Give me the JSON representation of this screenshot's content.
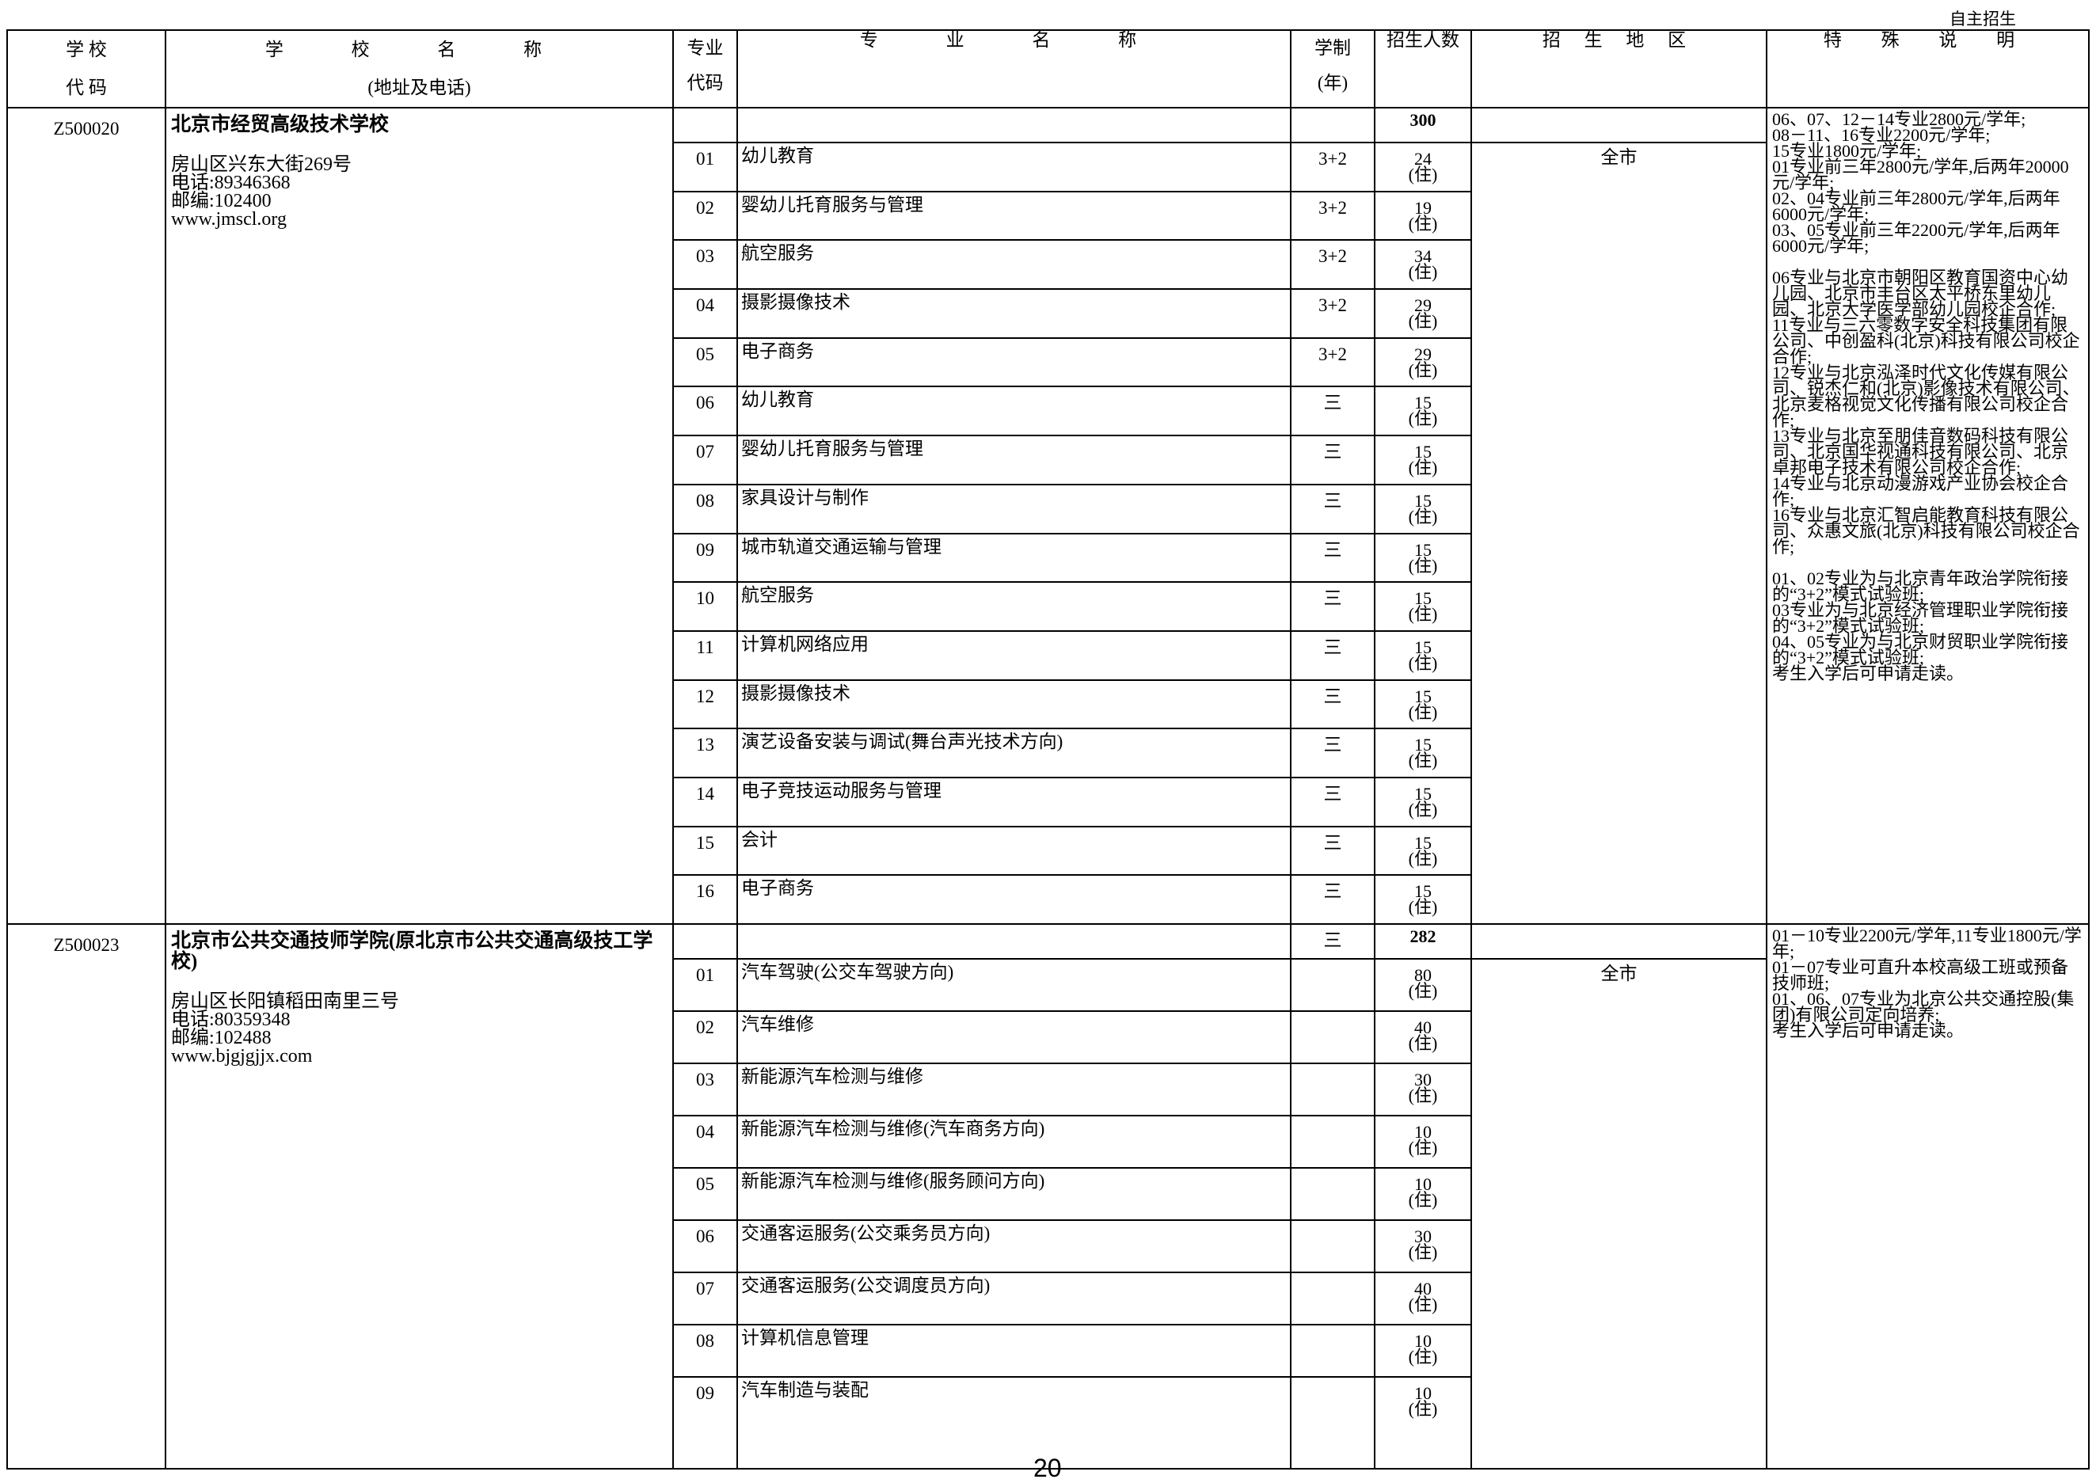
{
  "top_tag": "自主招生",
  "header": {
    "school_code": [
      "学 校",
      "代 码"
    ],
    "school_name": [
      "学 校 名 称",
      "(地址及电话)"
    ],
    "major_code": [
      "专业",
      "代码"
    ],
    "major_name": "专 业 名 称",
    "duration": [
      "学制",
      "(年)"
    ],
    "enrollment": "招生人数",
    "region": "招 生 地 区",
    "remarks": "特 殊 说 明"
  },
  "schools": [
    {
      "code": "Z500020",
      "name": "北京市经贸高级技术学校",
      "address": "房山区兴东大街269号",
      "phone": "电话:89346368",
      "postcode": "邮编:102400",
      "website": "www.jmscl.org",
      "total_duration": "",
      "total": "300",
      "region": "全市",
      "remarks": "06、07、12－14专业2800元/学年;\n08－11、16专业2200元/学年;\n15专业1800元/学年;\n01专业前三年2800元/学年,后两年20000元/学年;\n02、04专业前三年2800元/学年,后两年6000元/学年;\n03、05专业前三年2200元/学年,后两年6000元/学年;\n\n06专业与北京市朝阳区教育国资中心幼儿园、北京市丰台区太平桥东里幼儿园、北京大学医学部幼儿园校企合作;\n11专业与三六零数字安全科技集团有限公司、中创盈科(北京)科技有限公司校企合作;\n12专业与北京泓泽时代文化传媒有限公司、锐杰仁和(北京)影像技术有限公司、北京麦格视觉文化传播有限公司校企合作;\n13专业与北京至朋佳音数码科技有限公司、北京国华视通科技有限公司、北京卓邦电子技术有限公司校企合作;\n14专业与北京动漫游戏产业协会校企合作;\n16专业与北京汇智启能教育科技有限公司、众惠文旅(北京)科技有限公司校企合作;\n\n01、02专业为与北京青年政治学院衔接的“3+2”模式试验班;\n03专业为与北京经济管理职业学院衔接的“3+2”模式试验班;\n04、05专业为与北京财贸职业学院衔接的“3+2”模式试验班;\n考生入学后可申请走读。",
      "majors": [
        {
          "code": "01",
          "name": "幼儿教育",
          "duration": "3+2",
          "count": "24",
          "note": "(住)"
        },
        {
          "code": "02",
          "name": "婴幼儿托育服务与管理",
          "duration": "3+2",
          "count": "19",
          "note": "(住)"
        },
        {
          "code": "03",
          "name": "航空服务",
          "duration": "3+2",
          "count": "34",
          "note": "(住)"
        },
        {
          "code": "04",
          "name": "摄影摄像技术",
          "duration": "3+2",
          "count": "29",
          "note": "(住)"
        },
        {
          "code": "05",
          "name": "电子商务",
          "duration": "3+2",
          "count": "29",
          "note": "(住)"
        },
        {
          "code": "06",
          "name": "幼儿教育",
          "duration": "三",
          "count": "15",
          "note": "(住)"
        },
        {
          "code": "07",
          "name": "婴幼儿托育服务与管理",
          "duration": "三",
          "count": "15",
          "note": "(住)"
        },
        {
          "code": "08",
          "name": "家具设计与制作",
          "duration": "三",
          "count": "15",
          "note": "(住)"
        },
        {
          "code": "09",
          "name": "城市轨道交通运输与管理",
          "duration": "三",
          "count": "15",
          "note": "(住)"
        },
        {
          "code": "10",
          "name": "航空服务",
          "duration": "三",
          "count": "15",
          "note": "(住)"
        },
        {
          "code": "11",
          "name": "计算机网络应用",
          "duration": "三",
          "count": "15",
          "note": "(住)"
        },
        {
          "code": "12",
          "name": "摄影摄像技术",
          "duration": "三",
          "count": "15",
          "note": "(住)"
        },
        {
          "code": "13",
          "name": "演艺设备安装与调试(舞台声光技术方向)",
          "duration": "三",
          "count": "15",
          "note": "(住)"
        },
        {
          "code": "14",
          "name": "电子竞技运动服务与管理",
          "duration": "三",
          "count": "15",
          "note": "(住)"
        },
        {
          "code": "15",
          "name": "会计",
          "duration": "三",
          "count": "15",
          "note": "(住)"
        },
        {
          "code": "16",
          "name": "电子商务",
          "duration": "三",
          "count": "15",
          "note": "(住)"
        }
      ]
    },
    {
      "code": "Z500023",
      "name": "北京市公共交通技师学院(原北京市公共交通高级技工学校)",
      "address": "房山区长阳镇稻田南里三号",
      "phone": "电话:80359348",
      "postcode": "邮编:102488",
      "website": "www.bjgjgjjx.com",
      "total_duration": "三",
      "total": "282",
      "region": "全市",
      "remarks": "01－10专业2200元/学年,11专业1800元/学年;\n01－07专业可直升本校高级工班或预备技师班;\n01、06、07专业为北京公共交通控股(集团)有限公司定向培养;\n考生入学后可申请走读。",
      "majors": [
        {
          "code": "01",
          "name": "汽车驾驶(公交车驾驶方向)",
          "duration": "",
          "count": "80",
          "note": "(住)"
        },
        {
          "code": "02",
          "name": "汽车维修",
          "duration": "",
          "count": "40",
          "note": "(住)"
        },
        {
          "code": "03",
          "name": "新能源汽车检测与维修",
          "duration": "",
          "count": "30",
          "note": "(住)"
        },
        {
          "code": "04",
          "name": "新能源汽车检测与维修(汽车商务方向)",
          "duration": "",
          "count": "10",
          "note": "(住)"
        },
        {
          "code": "05",
          "name": "新能源汽车检测与维修(服务顾问方向)",
          "duration": "",
          "count": "10",
          "note": "(住)"
        },
        {
          "code": "06",
          "name": "交通客运服务(公交乘务员方向)",
          "duration": "",
          "count": "30",
          "note": "(住)"
        },
        {
          "code": "07",
          "name": "交通客运服务(公交调度员方向)",
          "duration": "",
          "count": "40",
          "note": "(住)"
        },
        {
          "code": "08",
          "name": "计算机信息管理",
          "duration": "",
          "count": "10",
          "note": "(住)"
        },
        {
          "code": "09",
          "name": "汽车制造与装配",
          "duration": "",
          "count": "10",
          "note": "(住)"
        }
      ]
    }
  ],
  "page_number": "20"
}
